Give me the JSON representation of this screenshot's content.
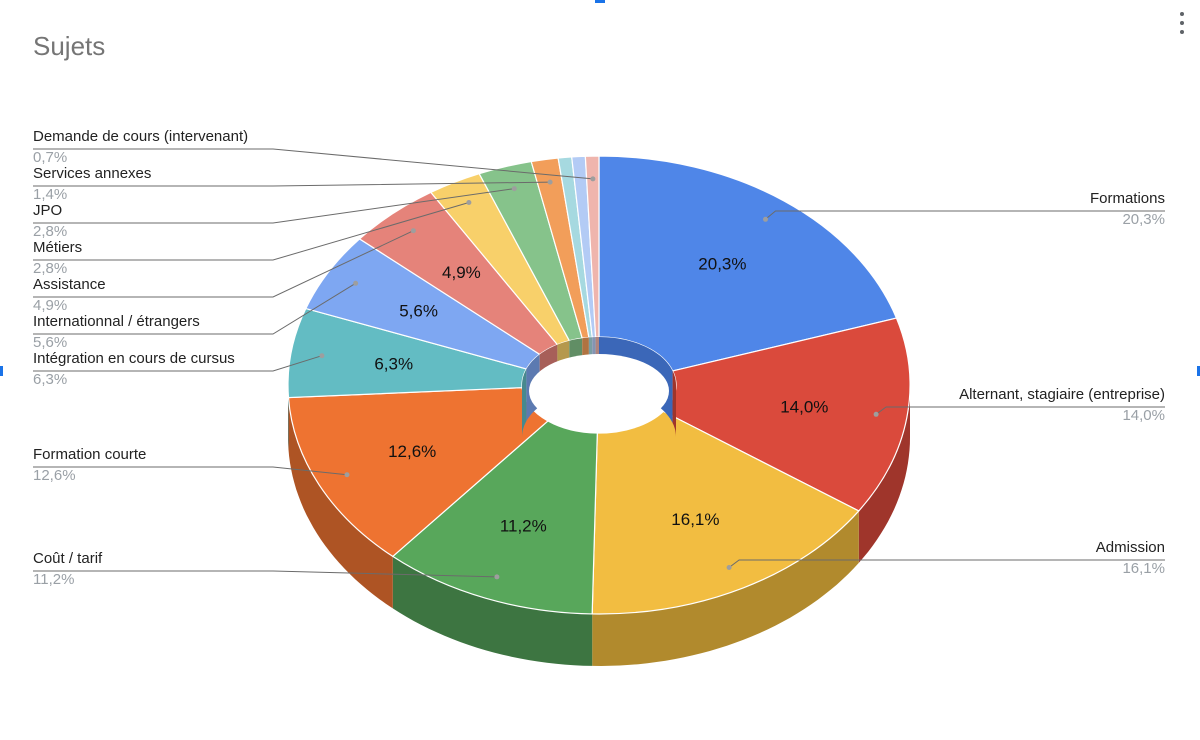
{
  "chart_data": {
    "type": "pie",
    "style": "3d-donut",
    "title": "Sujets",
    "legend": "labels-with-leader-lines",
    "slices": [
      {
        "label": "Formations",
        "value": 20.3,
        "display": "20,3%",
        "color": "#4f86e8",
        "side_color": "#3b67b8"
      },
      {
        "label": "Alternant, stagiaire (entreprise)",
        "value": 14.0,
        "display": "14,0%",
        "color": "#da4a3c",
        "side_color": "#9f352b"
      },
      {
        "label": "Admission",
        "value": 16.1,
        "display": "16,1%",
        "color": "#f2bd41",
        "side_color": "#b18a2d"
      },
      {
        "label": "Coût / tarif",
        "value": 11.2,
        "display": "11,2%",
        "color": "#58a75b",
        "side_color": "#3d7541"
      },
      {
        "label": "Formation courte",
        "value": 12.6,
        "display": "12,6%",
        "color": "#ee7331",
        "side_color": "#ae5424"
      },
      {
        "label": "Intégration en cours de cursus",
        "value": 6.3,
        "display": "6,3%",
        "color": "#63bcc3",
        "side_color": "#47898e"
      },
      {
        "label": "Internationnal / étrangers",
        "value": 5.6,
        "display": "5,6%",
        "color": "#7ea7f2",
        "side_color": "#5c7ab1"
      },
      {
        "label": "Assistance",
        "value": 4.9,
        "display": "4,9%",
        "color": "#e5837a",
        "side_color": "#a75f59"
      },
      {
        "label": "Métiers",
        "value": 2.8,
        "display": "2,8%",
        "color": "#f8d06a",
        "side_color": "#b5984d"
      },
      {
        "label": "JPO",
        "value": 2.8,
        "display": "2,8%",
        "color": "#86c38b",
        "side_color": "#618e65"
      },
      {
        "label": "Services annexes",
        "value": 1.4,
        "display": "1,4%",
        "color": "#f29e5a",
        "side_color": "#b07341"
      },
      {
        "label": "",
        "value": 0.7,
        "display": "",
        "color": "#a6d9e0",
        "side_color": "#799ea3"
      },
      {
        "label": "",
        "value": 0.7,
        "display": "",
        "color": "#b3cbf5",
        "side_color": "#8394b3"
      },
      {
        "label": "Demande de cours (intervenant)",
        "value": 0.7,
        "display": "0,7%",
        "color": "#efb5ad",
        "side_color": "#ae847e"
      }
    ]
  },
  "menu": {
    "icon": "more-vert-icon"
  }
}
